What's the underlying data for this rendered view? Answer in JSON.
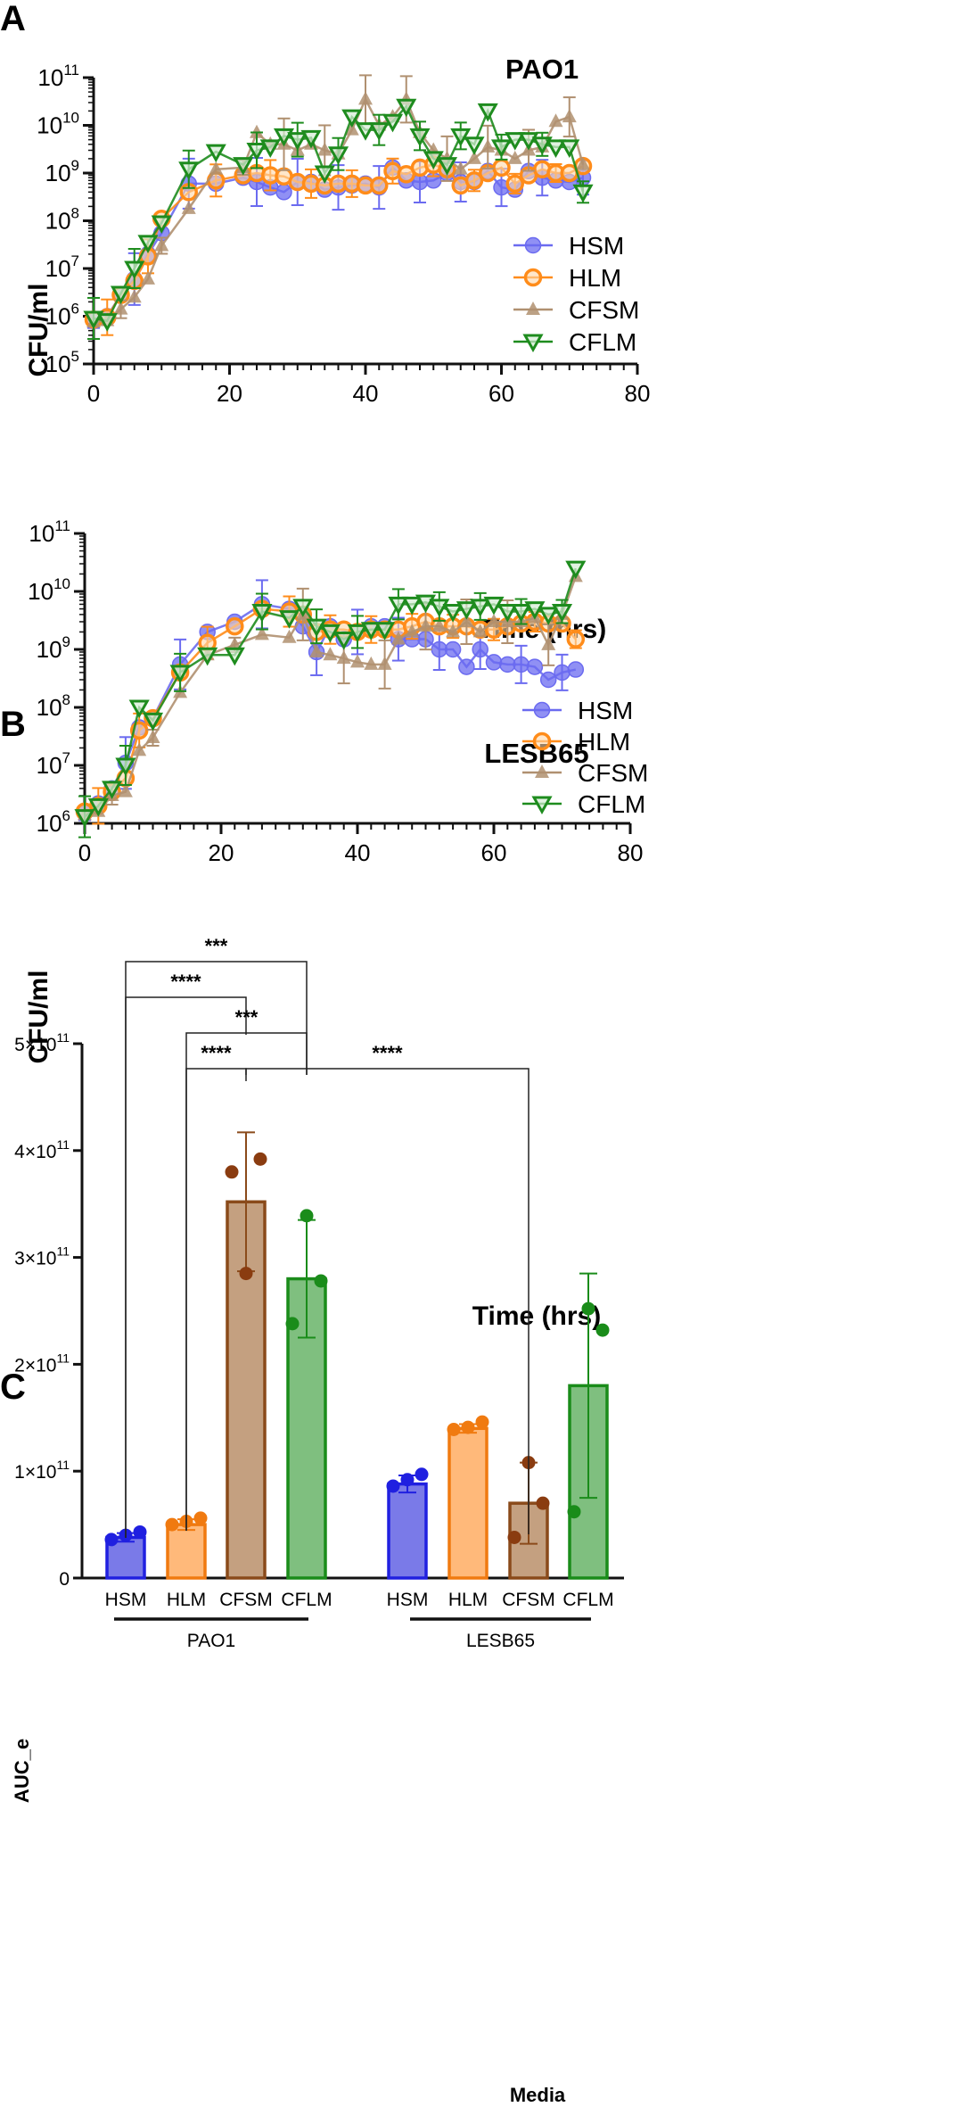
{
  "colors": {
    "HSM": "#6b6bf0",
    "HLM": "#ff8c1a",
    "CFSM": "#b09070",
    "CFLM": "#1e8c1e",
    "HSM_bar": "#7a7ae8",
    "HSM_edge": "#2020e0",
    "HLM_bar": "#ffb97a",
    "HLM_edge": "#f07a10",
    "CFSM_bar": "#c4a080",
    "CFSM_edge": "#8a4a1a",
    "CFSM_dot": "#8a3c10",
    "CFLM_bar": "#7fbf7f",
    "CFLM_edge": "#1a8c1a",
    "CFLM_dot": "#1a8c1a"
  },
  "panels": {
    "A": {
      "letter": "A"
    },
    "B": {
      "letter": "B"
    },
    "C": {
      "letter": "C"
    }
  },
  "chart_data": [
    {
      "type": "line",
      "title": "PAO1",
      "xlabel": "Time (hrs)",
      "ylabel": "CFU/ml",
      "yscale": "log",
      "xlim": [
        0,
        80
      ],
      "ylim": [
        100000,
        100000000000
      ],
      "xticks": [
        "0",
        "20",
        "40",
        "60",
        "80"
      ],
      "yticks": [
        "10^5",
        "10^6",
        "10^7",
        "10^8",
        "10^9",
        "10^10",
        "10^11"
      ],
      "legend": "bottom-right",
      "x": [
        0,
        2,
        4,
        6,
        8,
        10,
        14,
        18,
        22,
        24,
        26,
        28,
        30,
        32,
        34,
        36,
        38,
        40,
        42,
        44,
        46,
        48,
        50,
        52,
        54,
        56,
        58,
        60,
        62,
        64,
        66,
        68,
        70,
        72
      ],
      "series": [
        {
          "name": "HSM",
          "values": [
            800000,
            1000000,
            2800000,
            6000000,
            20000000,
            55000000,
            600000000,
            600000000,
            800000000,
            650000000,
            500000000,
            400000000,
            650000000,
            650000000,
            450000000,
            500000000,
            550000000,
            600000000,
            500000000,
            1300000000,
            700000000,
            650000000,
            700000000,
            1000000000,
            650000000,
            650000000,
            1100000000,
            500000000,
            450000000,
            1100000000,
            800000000,
            700000000,
            650000000,
            800000000
          ]
        },
        {
          "name": "HLM",
          "values": [
            850000,
            950000,
            2800000,
            5500000,
            18000000,
            110000000,
            400000000,
            700000000,
            900000000,
            1000000000,
            900000000,
            850000000,
            650000000,
            600000000,
            550000000,
            600000000,
            600000000,
            550000000,
            550000000,
            1100000000,
            950000000,
            1300000000,
            1500000000,
            1200000000,
            550000000,
            700000000,
            1000000000,
            1300000000,
            600000000,
            900000000,
            1200000000,
            1000000000,
            1000000000,
            1400000000
          ]
        },
        {
          "name": "CFSM",
          "values": [
            750000,
            800000,
            1400000,
            2500000,
            6000000,
            30000000,
            180000000,
            1200000000,
            1300000000,
            7000000000,
            4000000000,
            4000000000,
            3000000000,
            4000000000,
            3000000000,
            2500000000,
            8000000000,
            35000000000,
            10000000000,
            15000000000,
            35000000000,
            7000000000,
            3000000000,
            2000000000,
            1200000000,
            2000000000,
            3500000000,
            3000000000,
            2000000000,
            3000000000,
            3500000000,
            12000000000,
            15000000000,
            1500000000
          ]
        },
        {
          "name": "CFLM",
          "values": [
            900000,
            800000,
            3000000,
            10000000,
            35000000,
            90000000,
            1200000000,
            2800000000,
            1500000000,
            3000000000,
            3500000000,
            6000000000,
            5000000000,
            5500000000,
            1000000000,
            2500000000,
            15000000000,
            8000000000,
            8000000000,
            12000000000,
            25000000000,
            6000000000,
            2000000000,
            1500000000,
            6000000000,
            4000000000,
            20000000000,
            3500000000,
            5000000000,
            5000000000,
            4000000000,
            3500000000,
            3500000000,
            400000000
          ]
        }
      ]
    },
    {
      "type": "line",
      "title": "LESB65",
      "xlabel": "Time (hrs)",
      "ylabel": "CFU/ml",
      "yscale": "log",
      "xlim": [
        0,
        80
      ],
      "ylim": [
        1000000,
        100000000000
      ],
      "xticks": [
        "0",
        "20",
        "40",
        "60",
        "80"
      ],
      "yticks": [
        "10^6",
        "10^7",
        "10^8",
        "10^9",
        "10^10",
        "10^11"
      ],
      "legend": "bottom-right",
      "x": [
        0,
        2,
        4,
        6,
        8,
        10,
        14,
        18,
        22,
        26,
        30,
        32,
        34,
        36,
        38,
        40,
        42,
        44,
        46,
        48,
        50,
        52,
        54,
        56,
        58,
        60,
        62,
        64,
        66,
        68,
        70,
        72
      ],
      "series": [
        {
          "name": "HSM",
          "values": [
            1500000,
            2200000,
            4000000,
            11000000,
            45000000,
            65000000,
            550000000,
            2000000000,
            3000000000,
            6000000000,
            5000000000,
            2500000000,
            900000000,
            2500000000,
            1500000000,
            2000000000,
            2500000000,
            2500000000,
            1500000000,
            1500000000,
            1500000000,
            1000000000,
            1000000000,
            500000000,
            1000000000,
            600000000,
            550000000,
            550000000,
            500000000,
            300000000,
            400000000,
            450000000
          ]
        },
        {
          "name": "HLM",
          "values": [
            1600000,
            2000000,
            3500000,
            6000000,
            40000000,
            65000000,
            400000000,
            1300000000,
            2500000000,
            5000000000,
            4500000000,
            4000000000,
            2000000000,
            2200000000,
            2200000000,
            2000000000,
            2200000000,
            2200000000,
            2200000000,
            2500000000,
            3000000000,
            2500000000,
            2500000000,
            2500000000,
            2200000000,
            2200000000,
            2500000000,
            2800000000,
            3000000000,
            2800000000,
            2800000000,
            1500000000
          ]
        },
        {
          "name": "CFSM",
          "values": [
            1400000,
            1600000,
            3000000,
            3500000,
            18000000,
            30000000,
            180000000,
            800000000,
            1200000000,
            1800000000,
            1600000000,
            4000000000,
            900000000,
            800000000,
            700000000,
            600000000,
            550000000,
            550000000,
            1500000000,
            2000000000,
            2500000000,
            2500000000,
            2000000000,
            3000000000,
            2000000000,
            3000000000,
            3000000000,
            3000000000,
            3500000000,
            1200000000,
            4000000000,
            18000000000
          ]
        },
        {
          "name": "CFLM",
          "values": [
            1300000,
            2000000,
            4000000,
            10000000,
            100000000,
            60000000,
            400000000,
            800000000,
            800000000,
            4500000000,
            3500000000,
            5500000000,
            2500000000,
            2000000000,
            1500000000,
            2000000000,
            2200000000,
            2200000000,
            6000000000,
            6000000000,
            6500000000,
            5500000000,
            4500000000,
            5000000000,
            5500000000,
            6000000000,
            4500000000,
            4500000000,
            5000000000,
            4000000000,
            4500000000,
            25000000000
          ]
        }
      ]
    },
    {
      "type": "bar",
      "title": "",
      "xlabel": "Media",
      "ylabel": "AUC_e",
      "ylim": [
        0,
        500000000000
      ],
      "yticks": [
        "0",
        "1×10^11",
        "2×10^11",
        "3×10^11",
        "4×10^11",
        "5×10^11"
      ],
      "groups": [
        "PAO1",
        "LESB65"
      ],
      "categories": [
        "HSM",
        "HLM",
        "CFSM",
        "CFLM"
      ],
      "bars": [
        {
          "group": "PAO1",
          "category": "HSM",
          "mean": 38000000000,
          "sd": 4000000000,
          "points": [
            40000000000,
            43000000000,
            36000000000
          ]
        },
        {
          "group": "PAO1",
          "category": "HLM",
          "mean": 50000000000,
          "sd": 5000000000,
          "points": [
            53000000000,
            56000000000,
            50000000000
          ]
        },
        {
          "group": "PAO1",
          "category": "CFSM",
          "mean": 352000000000,
          "sd": 65000000000,
          "points": [
            285000000000,
            392000000000,
            380000000000
          ]
        },
        {
          "group": "PAO1",
          "category": "CFLM",
          "mean": 280000000000,
          "sd": 55000000000,
          "points": [
            339000000000,
            278000000000,
            238000000000
          ]
        },
        {
          "group": "LESB65",
          "category": "HSM",
          "mean": 88000000000,
          "sd": 8000000000,
          "points": [
            92000000000,
            97000000000,
            86000000000
          ]
        },
        {
          "group": "LESB65",
          "category": "HLM",
          "mean": 140000000000,
          "sd": 4000000000,
          "points": [
            141000000000,
            146000000000,
            139000000000
          ]
        },
        {
          "group": "LESB65",
          "category": "CFSM",
          "mean": 70000000000,
          "sd": 38000000000,
          "points": [
            108000000000,
            70000000000,
            38000000000
          ]
        },
        {
          "group": "LESB65",
          "category": "CFLM",
          "mean": 180000000000,
          "sd": 105000000000,
          "points": [
            252000000000,
            232000000000,
            62000000000
          ]
        }
      ],
      "significance": [
        {
          "from": "PAO1 HSM",
          "to": "PAO1 CFLM",
          "label": "***"
        },
        {
          "from": "PAO1 HSM",
          "to": "PAO1 CFSM",
          "label": "****"
        },
        {
          "from": "PAO1 HLM",
          "to": "PAO1 CFLM",
          "label": "***"
        },
        {
          "from": "PAO1 HLM",
          "to": "PAO1 CFSM",
          "label": "****"
        },
        {
          "from": "PAO1 CFSM",
          "to": "LESB65 CFSM",
          "label": "****"
        }
      ]
    }
  ]
}
